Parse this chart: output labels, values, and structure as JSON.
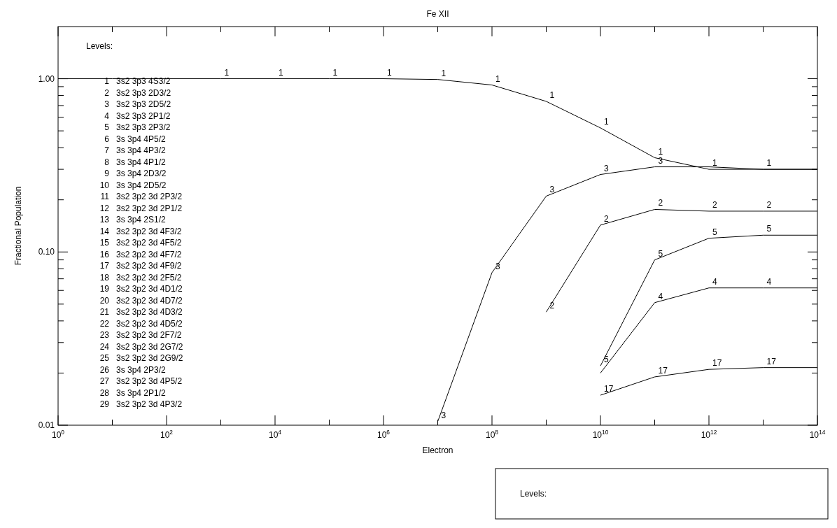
{
  "chart_data": [
    {
      "type": "line",
      "title": "Fe XII",
      "xlabel": "Electron",
      "ylabel": "Fractional Population",
      "log": "xy",
      "xlim": [
        1,
        100000000000000.0
      ],
      "ylim": [
        0.01,
        2
      ],
      "xticks": [
        {
          "value": 1,
          "label": "10$^{0}$"
        },
        {
          "value": 10,
          "label": null
        },
        {
          "value": 100,
          "label": "10$^{2}$"
        },
        {
          "value": 1000,
          "label": null
        },
        {
          "value": 10000.0,
          "label": "10$^{4}$"
        },
        {
          "value": 100000.0,
          "label": null
        },
        {
          "value": 1000000.0,
          "label": "10$^{6}$"
        },
        {
          "value": 10000000.0,
          "label": null
        },
        {
          "value": 100000000.0,
          "label": "10$^{8}$"
        },
        {
          "value": 1000000000.0,
          "label": null
        },
        {
          "value": 10000000000.0,
          "label": "10$^{10}$"
        },
        {
          "value": 100000000000.0,
          "label": null
        },
        {
          "value": 1000000000000.0,
          "label": "10$^{12}$"
        },
        {
          "value": 10000000000000.0,
          "label": null
        },
        {
          "value": 100000000000000.0,
          "label": "10$^{14}$"
        }
      ],
      "yticks": [
        {
          "value": 0.01,
          "label": "0.01"
        },
        {
          "value": 0.02,
          "label": null
        },
        {
          "value": 0.03,
          "label": null
        },
        {
          "value": 0.04,
          "label": null
        },
        {
          "value": 0.05,
          "label": null
        },
        {
          "value": 0.06,
          "label": null
        },
        {
          "value": 0.07,
          "label": null
        },
        {
          "value": 0.08,
          "label": null
        },
        {
          "value": 0.09,
          "label": null
        },
        {
          "value": 0.1,
          "label": "0.10"
        },
        {
          "value": 0.2,
          "label": null
        },
        {
          "value": 0.3,
          "label": null
        },
        {
          "value": 0.4,
          "label": null
        },
        {
          "value": 0.5,
          "label": null
        },
        {
          "value": 0.6,
          "label": null
        },
        {
          "value": 0.7,
          "label": null
        },
        {
          "value": 0.8,
          "label": null
        },
        {
          "value": 0.9,
          "label": null
        },
        {
          "value": 1,
          "label": "1.00"
        }
      ],
      "series": [
        {
          "name": "1",
          "color": "#000000",
          "x": [
            1,
            10,
            100,
            1000,
            10000.0,
            100000.0,
            1000000.0,
            10000000.0,
            100000000.0,
            1000000000.0,
            10000000000.0,
            100000000000.0,
            1000000000000.0,
            10000000000000.0,
            100000000000000.0
          ],
          "values": [
            1,
            1,
            1,
            1,
            1,
            1,
            1,
            0.99,
            0.92,
            0.74,
            0.52,
            0.35,
            0.3,
            0.3,
            0.3
          ]
        },
        {
          "name": "3",
          "color": "#000000",
          "x": [
            10000000.0,
            100000000.0,
            1000000000.0,
            10000000000.0,
            100000000000.0,
            1000000000000.0,
            10000000000000.0,
            100000000000000.0
          ],
          "values": [
            0.0105,
            0.076,
            0.21,
            0.28,
            0.31,
            0.31,
            0.3,
            0.3
          ]
        },
        {
          "name": "2",
          "color": "#000000",
          "x": [
            1000000000.0,
            10000000000.0,
            100000000000.0,
            1000000000000.0,
            10000000000000.0,
            100000000000000.0
          ],
          "values": [
            0.045,
            0.143,
            0.176,
            0.172,
            0.172,
            0.172
          ]
        },
        {
          "name": "5",
          "color": "#000000",
          "x": [
            10000000000.0,
            100000000000.0,
            1000000000000.0,
            10000000000000.0,
            100000000000000.0
          ],
          "values": [
            0.022,
            0.09,
            0.12,
            0.125,
            0.125
          ]
        },
        {
          "name": "4",
          "color": "#000000",
          "x": [
            10000000000.0,
            100000000000.0,
            1000000000000.0,
            10000000000000.0,
            100000000000000.0
          ],
          "values": [
            0.02,
            0.051,
            0.062,
            0.062,
            0.062
          ]
        },
        {
          "name": "17",
          "color": "#000000",
          "x": [
            10000000000.0,
            100000000000.0,
            1000000000000.0,
            10000000000000.0,
            100000000000000.0
          ],
          "values": [
            0.0149,
            0.019,
            0.021,
            0.0215,
            0.0215
          ]
        }
      ],
      "annotations": [
        "Levels:",
        "1  3s2 3p3 4S3/2",
        "2  3s2 3p3 2D3/2",
        "3  3s2 3p3 2D5/2",
        "4  3s2 3p3 2P1/2",
        "5  3s2 3p3 2P3/2",
        "6  3s 3p4 4P5/2",
        "7  3s 3p4 4P3/2",
        "8  3s 3p4 4P1/2",
        "9  3s 3p4 2D3/2",
        "10  3s 3p4 2D5/2",
        "11  3s2 3p2 3d 2P3/2",
        "12  3s2 3p2 3d 2P1/2",
        "13  3s 3p4 2S1/2",
        "14  3s2 3p2 3d 4F3/2",
        "15  3s2 3p2 3d 4F5/2",
        "16  3s2 3p2 3d 4F7/2",
        "17  3s2 3p2 3d 4F9/2",
        "18  3s2 3p2 3d 2F5/2",
        "19  3s2 3p2 3d 4D1/2",
        "20  3s2 3p2 3d 4D7/2",
        "21  3s2 3p2 3d 4D3/2",
        "22  3s2 3p2 3d 4D5/2",
        "23  3s2 3p2 3d 2F7/2",
        "24  3s2 3p2 3d 2G7/2",
        "25  3s2 3p2 3d 2G9/2",
        "26  3s 3p4 2P3/2",
        "27  3s2 3p2 3d 4P5/2",
        "28  3s 3p4 2P1/2",
        "29  3s2 3p2 3d 4P3/2"
      ]
    },
    {
      "type": "other",
      "annotations": [
        "Levels:"
      ]
    }
  ]
}
